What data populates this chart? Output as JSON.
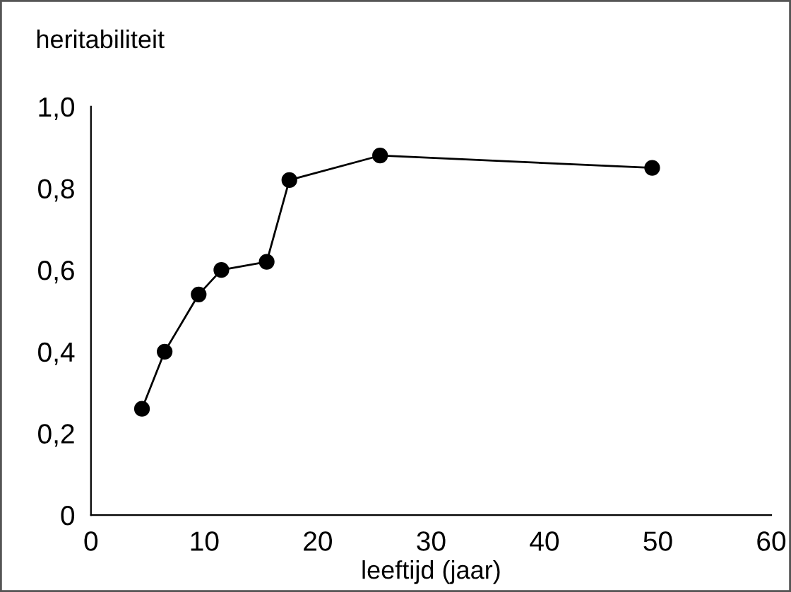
{
  "chart_data": {
    "type": "line",
    "ylabel": "heritabiliteit",
    "xlabel": "leeftijd (jaar)",
    "x": [
      4.5,
      6.5,
      9.5,
      11.5,
      15.5,
      17.5,
      25.5,
      49.5
    ],
    "series": [
      {
        "color": "#000000",
        "values": [
          0.26,
          0.4,
          0.54,
          0.6,
          0.62,
          0.82,
          0.88,
          0.85
        ]
      }
    ],
    "xlim": [
      0,
      60
    ],
    "xticks": [
      0,
      10,
      20,
      30,
      40,
      50,
      60
    ],
    "ylim": [
      0,
      1.0
    ],
    "yticks": [
      0,
      {
        "value": 0.2,
        "label": "0,2"
      },
      {
        "value": 0.4,
        "label": "0,4"
      },
      {
        "value": 0.6,
        "label": "0,6"
      },
      {
        "value": 0.8,
        "label": "0,8"
      },
      {
        "value": 1.0,
        "label": "1,0"
      }
    ],
    "marker": "circle",
    "line_style": "solid",
    "grid": false,
    "legend": false
  }
}
